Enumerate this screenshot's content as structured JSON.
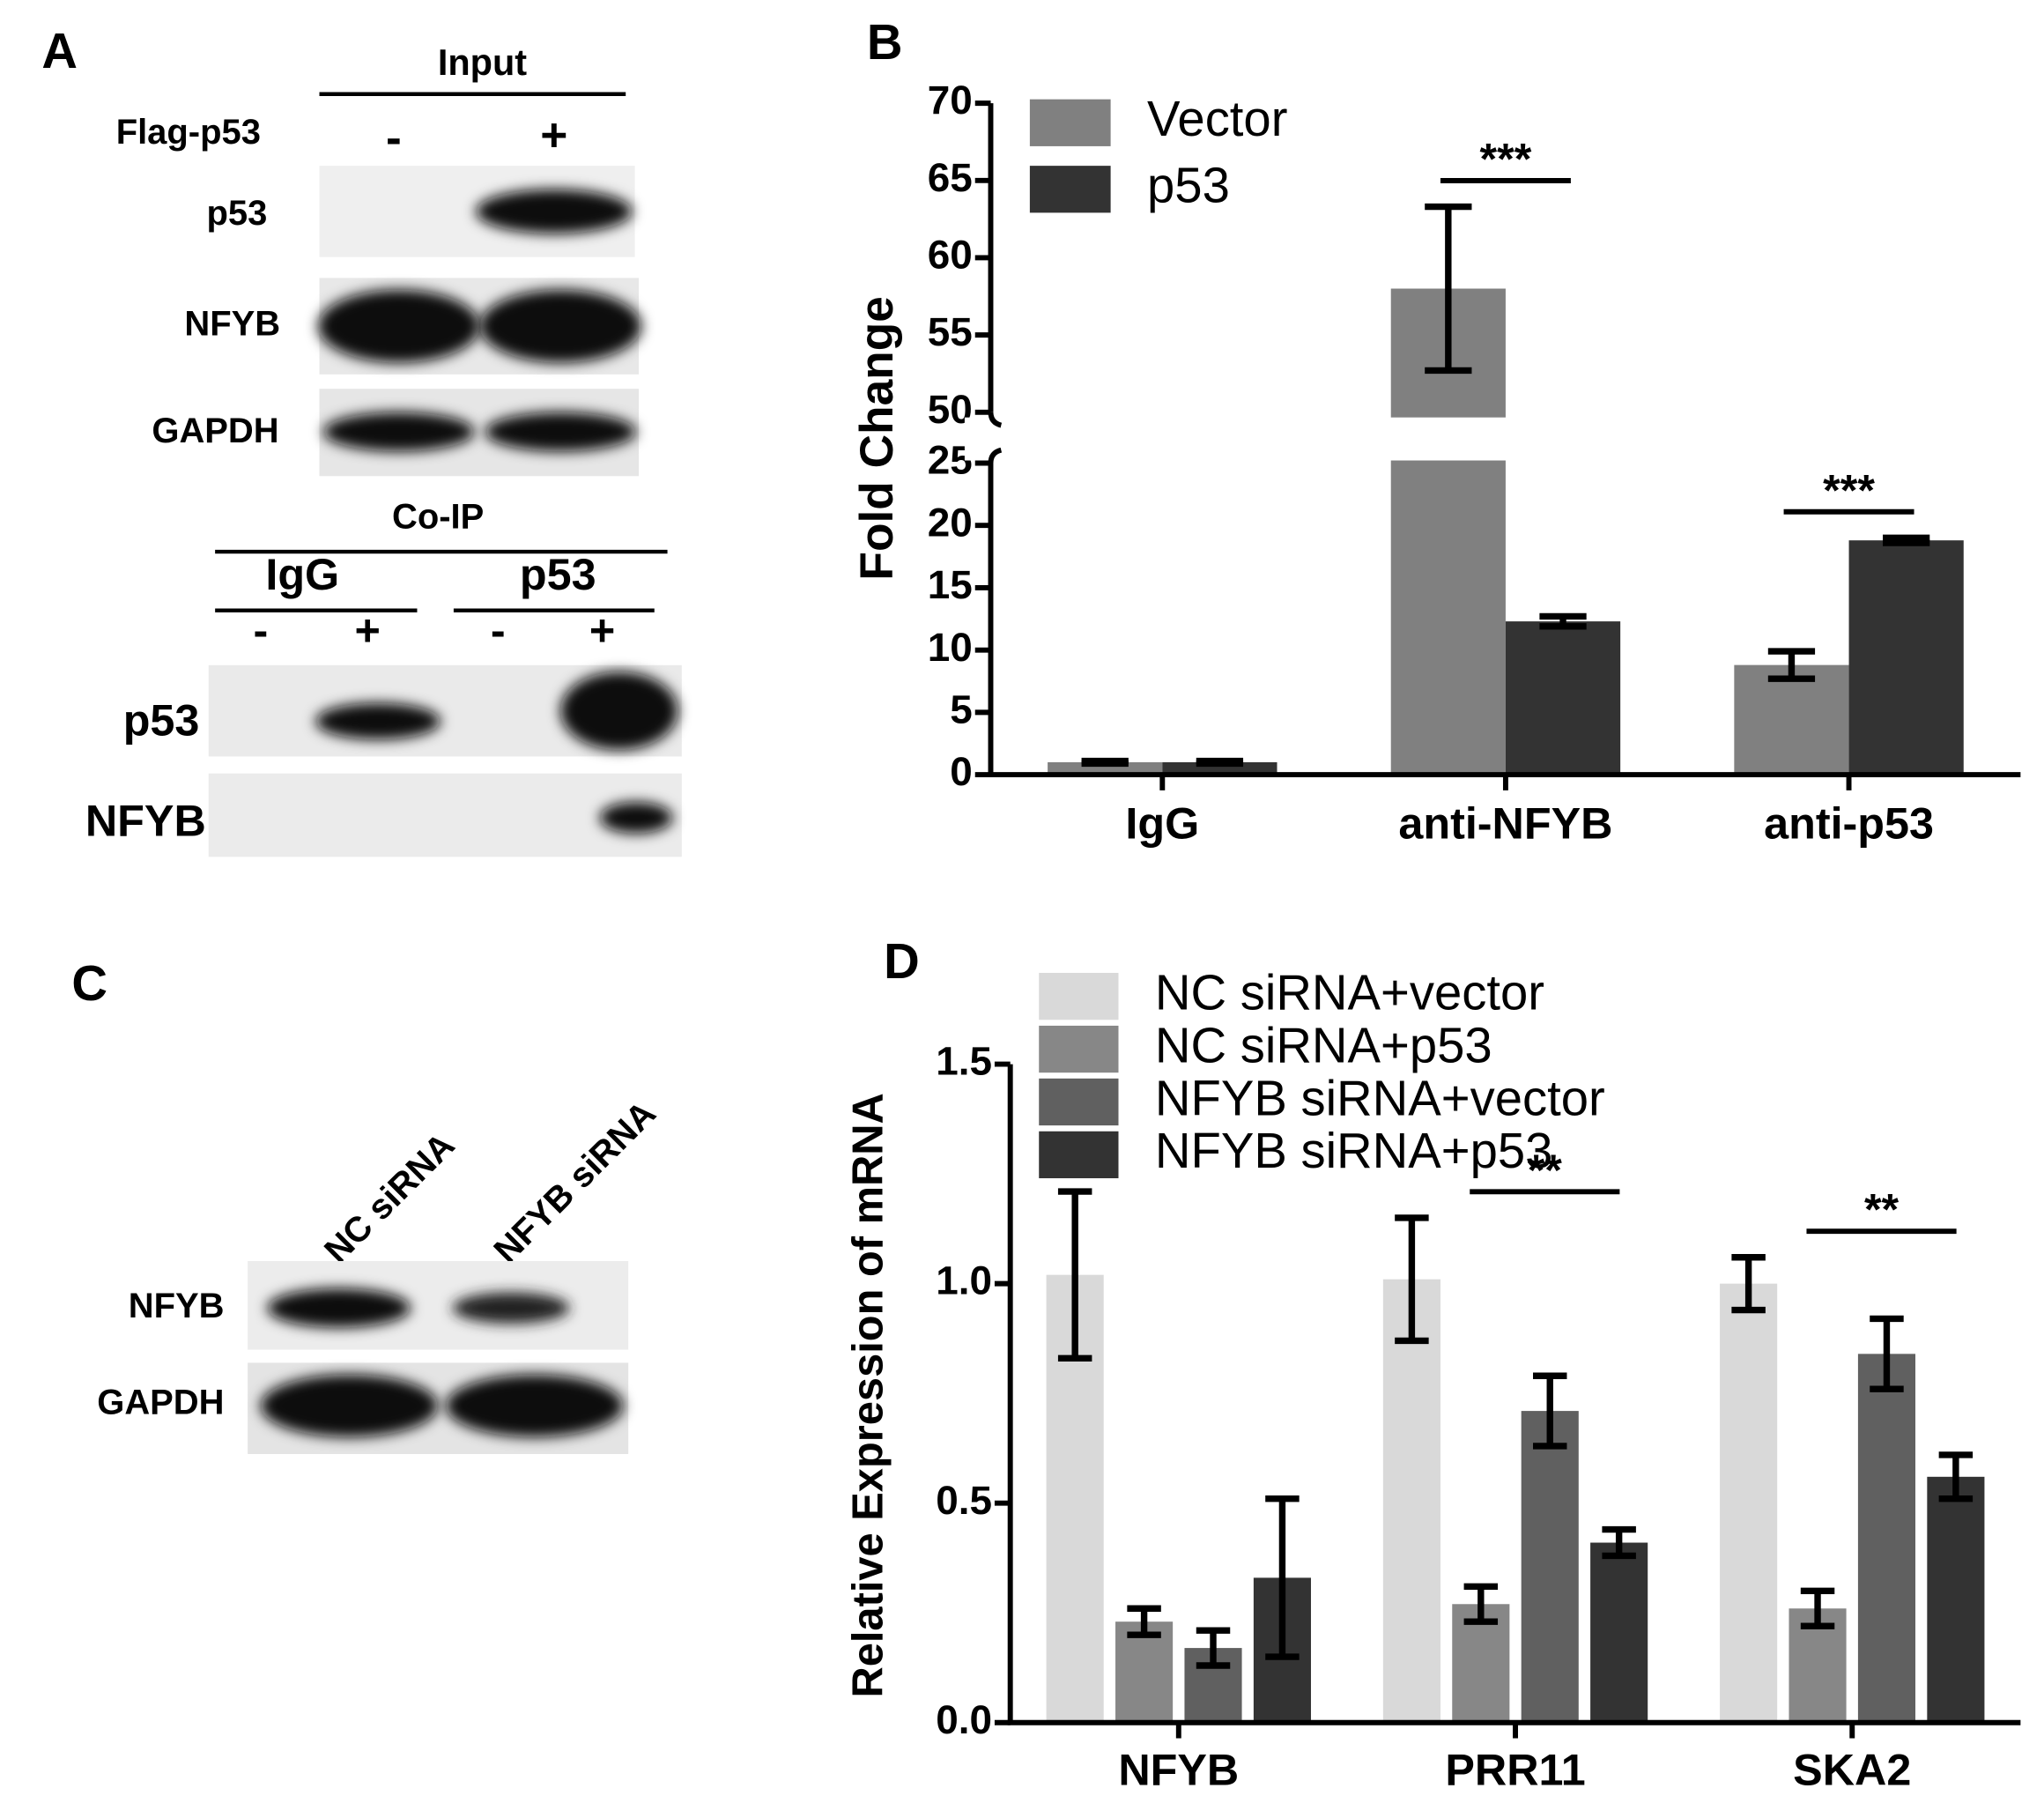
{
  "panel_a": {
    "label": "A",
    "input": {
      "title": "Input",
      "treatment": "Flag-p53",
      "lanes": [
        "-",
        "+"
      ],
      "rows": [
        "p53",
        "NFYB",
        "GAPDH"
      ]
    },
    "coip": {
      "title": "Co-IP",
      "groups": [
        "IgG",
        "p53"
      ],
      "lanes": [
        "-",
        "+",
        "-",
        "+"
      ],
      "rows": [
        "p53",
        "NFYB"
      ]
    }
  },
  "panel_c": {
    "label": "C",
    "lanes": [
      "NC siRNA",
      "NFYB siRNA"
    ],
    "rows": [
      "NFYB",
      "GAPDH"
    ]
  },
  "chart_data": [
    {
      "type": "bar",
      "panel_label": "B",
      "y_label": "Fold Change",
      "categories": [
        "IgG",
        "anti-NFYB",
        "anti-p53"
      ],
      "series": [
        {
          "name": "Vector",
          "color": "#808080",
          "values": [
            1,
            58,
            8.8
          ],
          "errors": [
            0.1,
            5.3,
            1.1
          ]
        },
        {
          "name": "p53",
          "color": "#333333",
          "values": [
            1,
            12.3,
            18.8
          ],
          "errors": [
            0.1,
            0.4,
            0.2
          ]
        }
      ],
      "ylim": [
        0,
        70
      ],
      "y_break": [
        25,
        50
      ],
      "yticks": [
        0,
        5,
        10,
        15,
        20,
        25,
        50,
        55,
        60,
        65,
        70
      ],
      "annotations": [
        {
          "text": "***",
          "category": "anti-NFYB"
        },
        {
          "text": "***",
          "category": "anti-p53"
        }
      ],
      "legend": "upper left"
    },
    {
      "type": "bar",
      "panel_label": "D",
      "y_label": "Relative Expression of mRNA",
      "categories": [
        "NFYB",
        "PRR11",
        "SKA2"
      ],
      "series": [
        {
          "name": "NC siRNA+vector",
          "color": "#d9d9d9",
          "values": [
            1.02,
            1.01,
            1.0
          ],
          "errors": [
            0.19,
            0.14,
            0.06
          ]
        },
        {
          "name": "NC siRNA+p53",
          "color": "#878787",
          "values": [
            0.23,
            0.27,
            0.26
          ],
          "errors": [
            0.03,
            0.04,
            0.04
          ]
        },
        {
          "name": "NFYB siRNA+vector",
          "color": "#606060",
          "values": [
            0.17,
            0.71,
            0.84
          ],
          "errors": [
            0.04,
            0.08,
            0.08
          ]
        },
        {
          "name": "NFYB siRNA+p53",
          "color": "#333333",
          "values": [
            0.33,
            0.41,
            0.56
          ],
          "errors": [
            0.18,
            0.03,
            0.05
          ]
        }
      ],
      "ylim": [
        0,
        1.5
      ],
      "yticks": [
        {
          "value": 0,
          "label": "0.0"
        },
        0.5,
        {
          "value": 1,
          "label": "1.0"
        },
        1.5
      ],
      "annotations": [
        {
          "text": "**",
          "category": "PRR11"
        },
        {
          "text": "**",
          "category": "SKA2"
        }
      ],
      "legend": "upper left"
    }
  ]
}
